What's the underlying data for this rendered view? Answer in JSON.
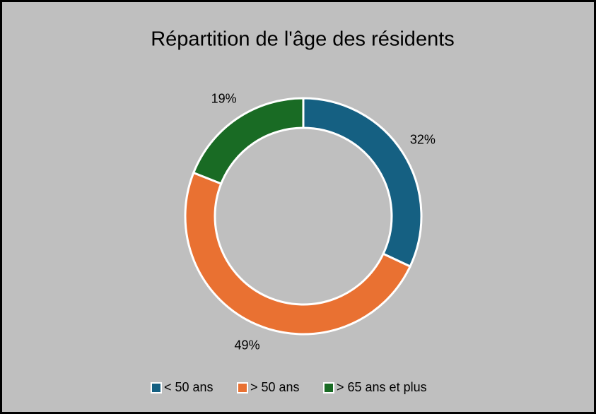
{
  "chart_data": {
    "type": "donut",
    "title": "Répartition de l'âge des résidents",
    "categories": [
      "< 50 ans",
      "> 50 ans",
      "> 65 ans et plus"
    ],
    "values": [
      32,
      49,
      19
    ],
    "value_labels": [
      "32%",
      "49%",
      "19%"
    ],
    "colors": [
      "#156082",
      "#e97132",
      "#196b24"
    ],
    "legend": "bottom"
  }
}
